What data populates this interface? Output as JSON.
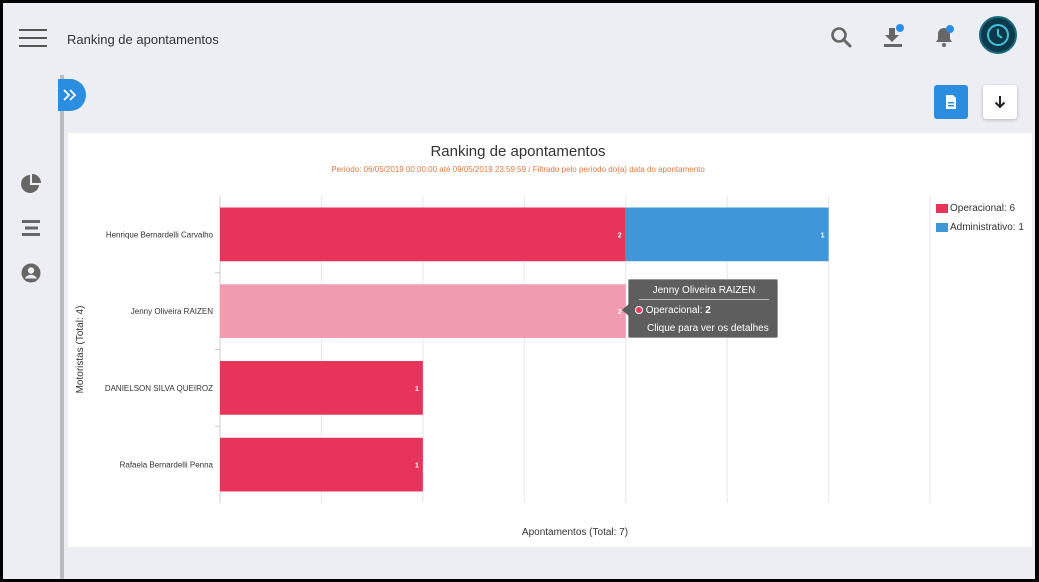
{
  "header": {
    "title": "Ranking de apontamentos"
  },
  "colors": {
    "operacional": "#e8335a",
    "operacional_highlight": "#f19bb0",
    "administrativo": "#3f96d8",
    "accent": "#2a8de0"
  },
  "icons": {
    "menu": "hamburger-icon",
    "search": "search-icon",
    "download": "download-icon",
    "notifications": "bell-icon",
    "sidebar": [
      "pie-chart-icon",
      "list-icon",
      "user-icon"
    ],
    "expand": "double-chevron-right-icon",
    "export_pdf": "document-icon",
    "download_chart": "arrow-down-icon"
  },
  "chart_data": {
    "type": "bar",
    "orientation": "horizontal",
    "stacked": true,
    "title": "Ranking de apontamentos",
    "subtitle": "Período: 06/05/2019 00:00:00 até 09/05/2019 23:59:59 / Filtrado pelo período do(a) data do apontamento",
    "ylabel": "Motoristas (Total: 4)",
    "xlabel": "Apontamentos (Total: 7)",
    "xlim": [
      0,
      3.5
    ],
    "grid": true,
    "legend_position": "right",
    "categories": [
      "Henrique Bernardelli Carvalho",
      "Jenny Oliveira RAIZEN",
      "DANIELSON SILVA QUEIROZ",
      "Rafaela Bernardelli Penna"
    ],
    "series": [
      {
        "name": "Operacional",
        "values": [
          2,
          2,
          1,
          1
        ]
      },
      {
        "name": "Administrativo",
        "values": [
          1,
          0,
          0,
          0
        ]
      }
    ],
    "legend": [
      "Operacional: 6",
      "Administrativo: 1"
    ],
    "highlighted_index": 1
  },
  "tooltip": {
    "title": "Jenny Oliveira RAIZEN",
    "series_label": "Operacional: ",
    "series_value": "2",
    "hint": "Clique para ver os detalhes"
  }
}
